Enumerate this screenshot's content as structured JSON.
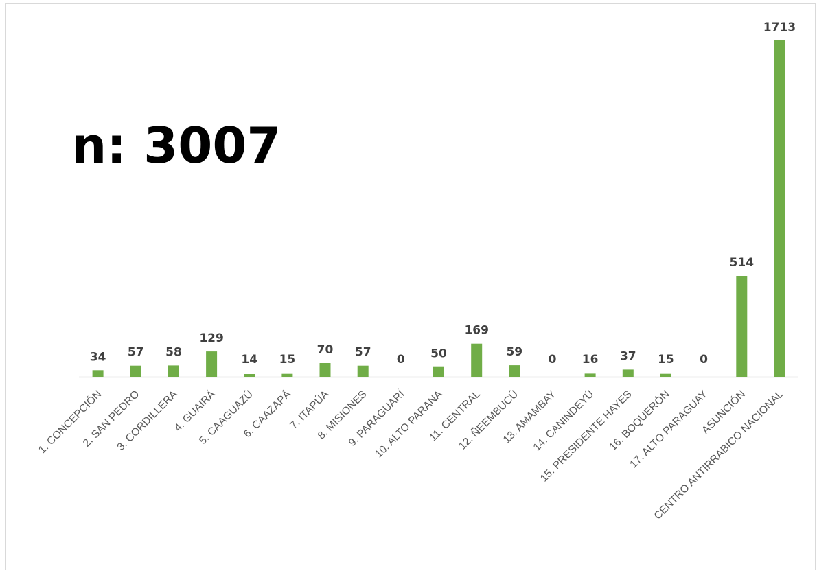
{
  "annotation": "n: 3007",
  "colors": {
    "bar": "#70ad47",
    "axis": "#d9d9d9",
    "value_label": "#404040",
    "category_label": "#595959"
  },
  "chart_data": {
    "type": "bar",
    "title": "",
    "xlabel": "",
    "ylabel": "",
    "ylim": [
      0,
      1713
    ],
    "grid": false,
    "legend": "none",
    "categories": [
      "1. CONCEPCIÓN",
      "2. SAN PEDRO",
      "3. CORDILLERA",
      "4. GUAIRÁ",
      "5. CAAGUAZÚ",
      "6. CAAZAPÁ",
      "7. ITAPÚA",
      "8. MISIONES",
      "9. PARAGUARÍ",
      "10. ALTO PARANA",
      "11. CENTRAL",
      "12. ÑEEMBUCÚ",
      "13. AMAMBAY",
      "14. CANINDEYÚ",
      "15. PRESIDENTE HAYES",
      "16. BOQUERÓN",
      "17. ALTO PARAGUAY",
      "ASUNCIÓN",
      "CENTRO ANTIRRABICO NACIONAL"
    ],
    "values": [
      34,
      57,
      58,
      129,
      14,
      15,
      70,
      57,
      0,
      50,
      169,
      59,
      0,
      16,
      37,
      15,
      0,
      514,
      1713
    ]
  }
}
